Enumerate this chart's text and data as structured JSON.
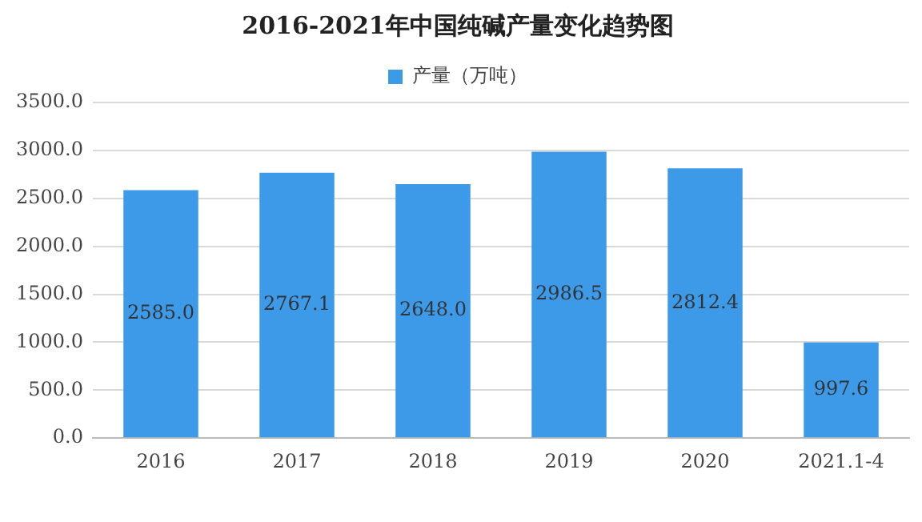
{
  "chart_data": {
    "type": "bar",
    "title": "2016-2021年中国纯碱产量变化趋势图",
    "categories": [
      "2016",
      "2017",
      "2018",
      "2019",
      "2020",
      "2021.1-4"
    ],
    "series": [
      {
        "name": "产量（万吨）",
        "color": "#3d9ae8",
        "values": [
          2585.0,
          2767.1,
          2648.0,
          2986.5,
          2812.4,
          997.6
        ],
        "value_labels": [
          "2585.0",
          "2767.1",
          "2648.0",
          "2986.5",
          "2812.4",
          "997.6"
        ]
      }
    ],
    "ylim": [
      0,
      3500
    ],
    "yticks": [
      {
        "value": 0,
        "label": "0.0"
      },
      {
        "value": 500,
        "label": "500.0"
      },
      {
        "value": 1000,
        "label": "1000.0"
      },
      {
        "value": 1500,
        "label": "1500.0"
      },
      {
        "value": 2000,
        "label": "2000.0"
      },
      {
        "value": 2500,
        "label": "2500.0"
      },
      {
        "value": 3000,
        "label": "3000.0"
      },
      {
        "value": 3500,
        "label": "3500.0"
      }
    ],
    "grid": "y",
    "legend": "top"
  }
}
